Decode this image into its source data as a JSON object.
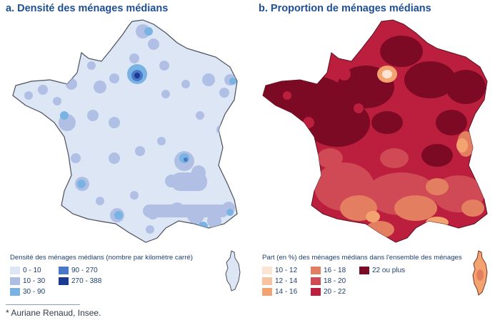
{
  "panel_a": {
    "title": "a. Densité des ménages médians",
    "legend_title": "Densité des ménages médians (nombre par kilomètre carré)",
    "legend": [
      {
        "label": "0 - 10",
        "color": "#dce6f4"
      },
      {
        "label": "10 - 30",
        "color": "#aebde4"
      },
      {
        "label": "30 - 90",
        "color": "#79b3e3"
      },
      {
        "label": "90 - 270",
        "color": "#4a78c8"
      },
      {
        "label": "270 - 388",
        "color": "#1a3b8f"
      }
    ]
  },
  "panel_b": {
    "title": "b. Proportion de ménages médians",
    "legend_title": "Part (en %) des ménages médians dans l'ensemble des ménages",
    "legend": [
      {
        "label": "10 - 12",
        "color": "#fde4d2"
      },
      {
        "label": "12 - 14",
        "color": "#f9c3a0"
      },
      {
        "label": "14 - 16",
        "color": "#f3a370"
      },
      {
        "label": "16 - 18",
        "color": "#e47e60"
      },
      {
        "label": "18 - 20",
        "color": "#cf4a55"
      },
      {
        "label": "20 - 22",
        "color": "#bb1f3d"
      },
      {
        "label": "22 ou plus",
        "color": "#7c0a24"
      }
    ]
  },
  "footnote": "* Auriane Renaud, Insee."
}
